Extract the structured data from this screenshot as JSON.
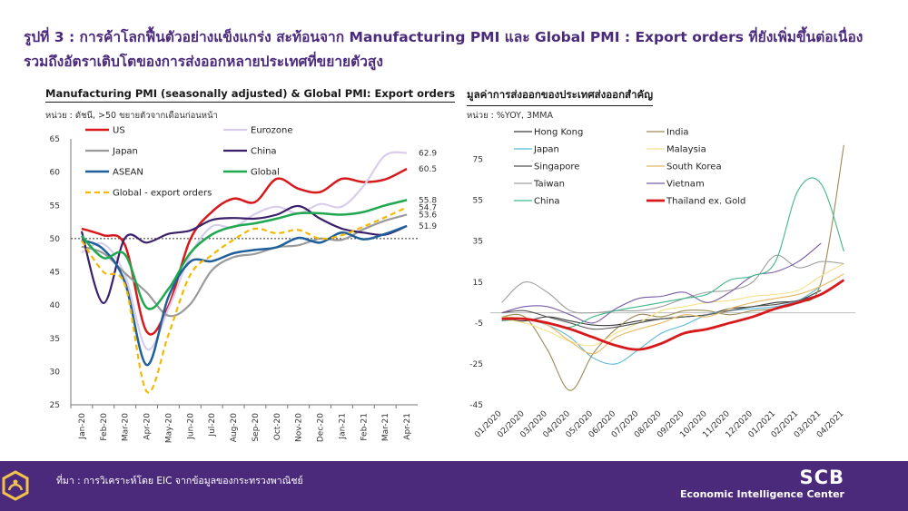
{
  "title": {
    "line1": "รูปที่ 3 : การค้าโลกฟื้นตัวอย่างแข็งแกร่ง สะท้อนจาก Manufacturing PMI และ Global PMI : Export orders ที่ยังเพิ่มขึ้นต่อเนื่อง",
    "line2": "รวมถึงอัตราเติบโตของการส่งออกหลายประเทศที่ขยายตัวสูง"
  },
  "footer": {
    "source": "ที่มา : การวิเคราะห์โดย EIC จากข้อมูลของกระทรวงพาณิชย์",
    "brand_name": "SCB",
    "brand_sub": "Economic Intelligence Center"
  },
  "colors": {
    "accent": "#4b2a7b"
  },
  "chart_data": [
    {
      "type": "line",
      "title": "Manufacturing PMI (seasonally adjusted) & Global PMI: Export orders",
      "unit": "หน่วย : ดัชนี, >50 ขยายตัวจากเดือนก่อนหน้า",
      "categories": [
        "Jan-20",
        "Feb-20",
        "Mar-20",
        "Apr-20",
        "May-20",
        "Jun-20",
        "Jul-20",
        "Aug-20",
        "Sep-20",
        "Oct-20",
        "Nov-20",
        "Dec-20",
        "Jan-21",
        "Feb-21",
        "Mar-21",
        "Apr-21"
      ],
      "ylim": [
        25,
        65
      ],
      "yticks": [
        25,
        30,
        35,
        40,
        45,
        50,
        55,
        60,
        65
      ],
      "reference_line": 50,
      "series": [
        {
          "name": "US",
          "color": "#d7191c",
          "width": 2.5,
          "dash": "",
          "values": [
            51.5,
            50.5,
            49,
            36,
            39.8,
            49.8,
            54,
            56,
            55.5,
            59,
            57.5,
            57,
            59,
            58.5,
            58.9,
            60.5
          ]
        },
        {
          "name": "Eurozone",
          "color": "#d9cdec",
          "width": 2.2,
          "dash": "",
          "values": [
            47.9,
            49.2,
            44.5,
            33.4,
            39.4,
            47.4,
            51.8,
            51.7,
            53.7,
            54.8,
            53.8,
            55.2,
            54.8,
            57.9,
            62.5,
            62.9
          ]
        },
        {
          "name": "Japan",
          "color": "#9a9a9a",
          "width": 2.2,
          "dash": "",
          "values": [
            48.8,
            47.8,
            44.8,
            41.9,
            38.4,
            40.1,
            45.2,
            47.2,
            47.7,
            48.7,
            49.0,
            50.0,
            49.8,
            51.4,
            52.7,
            53.6
          ]
        },
        {
          "name": "China",
          "color": "#3b1f6b",
          "width": 2.2,
          "dash": "",
          "values": [
            51.1,
            40.3,
            50.1,
            49.4,
            50.7,
            51.2,
            52.8,
            53.1,
            53.0,
            53.6,
            54.9,
            53.0,
            51.5,
            50.9,
            50.6,
            51.9
          ]
        },
        {
          "name": "ASEAN",
          "color": "#1f5f9a",
          "width": 2.5,
          "dash": "",
          "values": [
            49.8,
            48.4,
            43.4,
            31.0,
            41.2,
            46.5,
            46.6,
            47.8,
            48.3,
            48.7,
            50.1,
            49.4,
            50.9,
            49.9,
            50.7,
            51.9
          ]
        },
        {
          "name": "Global",
          "color": "#1fa84f",
          "width": 2.5,
          "dash": "",
          "values": [
            50.4,
            47.1,
            47.6,
            39.6,
            42.4,
            47.8,
            50.6,
            51.8,
            52.3,
            53.0,
            53.8,
            53.8,
            53.6,
            54.0,
            55.0,
            55.8
          ]
        },
        {
          "name": "Global - export orders",
          "color": "#f5b800",
          "width": 2.2,
          "dash": "6,4",
          "values": [
            49.7,
            45.0,
            43.0,
            27.0,
            35.5,
            44.5,
            47.5,
            49.8,
            51.5,
            50.8,
            51.3,
            50.0,
            50.5,
            51.8,
            53.2,
            54.7
          ]
        }
      ],
      "end_labels": [
        {
          "text": "62.9",
          "value": 62.9
        },
        {
          "text": "60.5",
          "value": 60.5
        },
        {
          "text": "55.8",
          "value": 55.8
        },
        {
          "text": "54.7",
          "value": 54.7
        },
        {
          "text": "53.6",
          "value": 53.6
        },
        {
          "text": "51.9",
          "value": 51.9
        }
      ]
    },
    {
      "type": "line",
      "title": "มูลค่าการส่งออกของประเทศส่งออกสำคัญ",
      "unit": "หน่วย : %YOY, 3MMA",
      "categories": [
        "01/2020",
        "02/2020",
        "03/2020",
        "04/2020",
        "05/2020",
        "06/2020",
        "07/2020",
        "08/2020",
        "09/2020",
        "10/2020",
        "11/2020",
        "12/2020",
        "01/2021",
        "02/2021",
        "03/2021",
        "04/2021"
      ],
      "ylim": [
        -45,
        85
      ],
      "yticks": [
        -45,
        -25,
        -5,
        15,
        35,
        55,
        75
      ],
      "reference_line": 0,
      "series": [
        {
          "name": "Hong Kong",
          "color": "#3a3a3a",
          "width": 1.1,
          "values": [
            -3,
            -4,
            -2,
            -4,
            -6,
            -6,
            -4,
            -3,
            -2,
            -1,
            2,
            3,
            5,
            6,
            11,
            null
          ]
        },
        {
          "name": "India",
          "color": "#9b8a54",
          "width": 1.1,
          "values": [
            -2,
            -2,
            -18,
            -38,
            -20,
            -8,
            -1,
            -2,
            1,
            1,
            -1,
            1,
            2,
            5,
            15,
            82
          ]
        },
        {
          "name": "Japan",
          "color": "#5bb8d8",
          "width": 1.1,
          "values": [
            -2,
            -3,
            -6,
            -12,
            -22,
            -25,
            -18,
            -10,
            -6,
            -1,
            1,
            2,
            3,
            6,
            13,
            null
          ]
        },
        {
          "name": "Malaysia",
          "color": "#f6e08a",
          "width": 1.1,
          "values": [
            -3,
            -5,
            -9,
            -14,
            -16,
            -10,
            -5,
            1,
            3,
            5,
            6,
            8,
            9,
            11,
            18,
            24
          ]
        },
        {
          "name": "Singapore",
          "color": "#555555",
          "width": 1.1,
          "values": [
            0,
            1,
            -2,
            -5,
            -8,
            -7,
            -5,
            -3,
            -2,
            -1,
            1,
            3,
            4,
            6,
            9,
            null
          ]
        },
        {
          "name": "South Korea",
          "color": "#e8b860",
          "width": 1.1,
          "values": [
            -2,
            -3,
            -6,
            -14,
            -20,
            -12,
            -8,
            -5,
            -1,
            -2,
            2,
            5,
            7,
            9,
            13,
            19
          ]
        },
        {
          "name": "Taiwan",
          "color": "#a0a0a0",
          "width": 1.1,
          "values": [
            5,
            15,
            10,
            1,
            0,
            1,
            1,
            3,
            7,
            10,
            11,
            15,
            28,
            22,
            25,
            24
          ]
        },
        {
          "name": "Vietnam",
          "color": "#7a5ca8",
          "width": 1.1,
          "values": [
            0,
            3,
            3,
            -1,
            -5,
            2,
            7,
            8,
            10,
            5,
            10,
            18,
            20,
            25,
            34,
            null
          ]
        },
        {
          "name": "China",
          "color": "#3fb888",
          "width": 1.1,
          "values": [
            -4,
            -3,
            -5,
            -7,
            -2,
            1,
            3,
            5,
            7,
            9,
            16,
            18,
            25,
            60,
            63,
            30
          ]
        },
        {
          "name": "Thailand ex. Gold",
          "color": "#d7191c",
          "width": 2.8,
          "values": [
            -3,
            -3,
            -5,
            -8,
            -12,
            -16,
            -18,
            -15,
            -10,
            -8,
            -5,
            -2,
            2,
            5,
            9,
            16
          ]
        }
      ]
    }
  ]
}
